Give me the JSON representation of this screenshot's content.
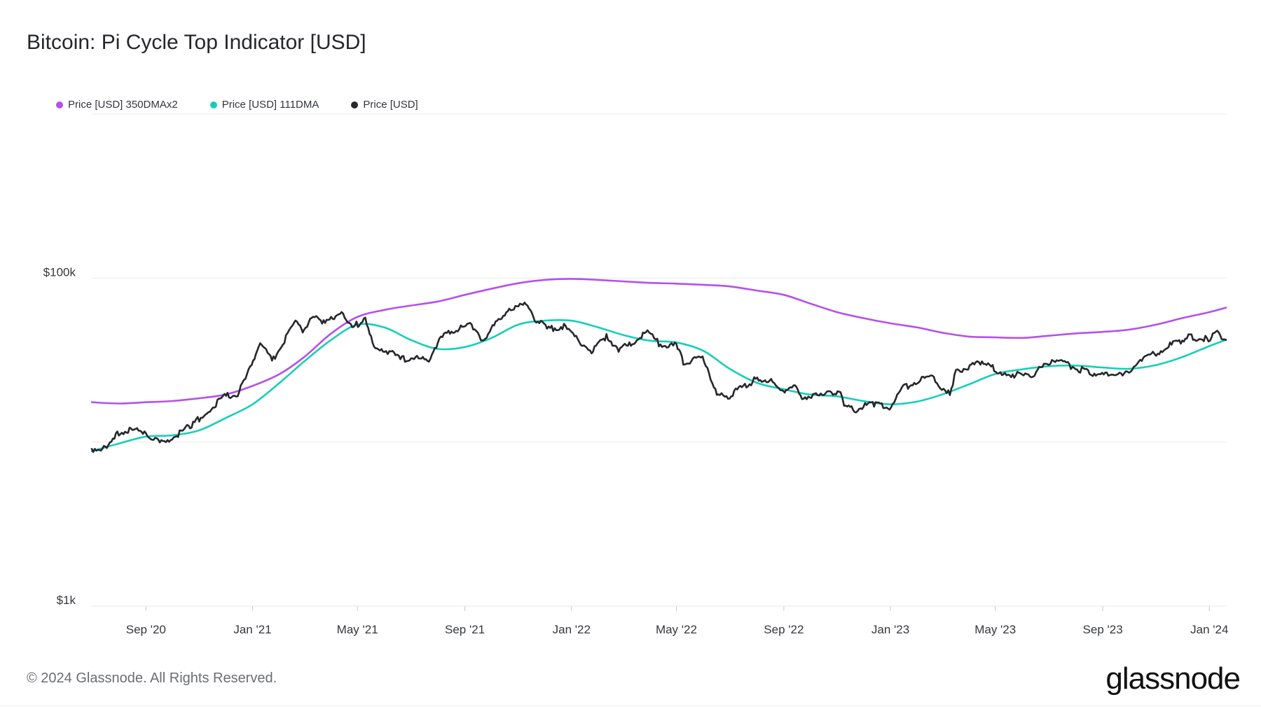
{
  "title": "Bitcoin: Pi Cycle Top Indicator [USD]",
  "footer": "© 2024 Glassnode. All Rights Reserved.",
  "logo": "glassnode",
  "colors": {
    "purple": "#b54fee",
    "teal": "#14cfb8",
    "black": "#26272b",
    "grid": "#e9e9ec",
    "axis_text": "#35373c"
  },
  "chart_data": {
    "type": "line",
    "title": "Bitcoin: Pi Cycle Top Indicator [USD]",
    "xlabel": "",
    "ylabel": "",
    "yscale": "log",
    "ylim": [
      1000,
      1000000
    ],
    "xlim": [
      "2020-07-01",
      "2024-01-20"
    ],
    "y_ticks": [
      {
        "value": 1000,
        "label": "$1k"
      },
      {
        "value": 100000,
        "label": "$100k"
      }
    ],
    "y_gridlines": [
      1000,
      10000,
      100000,
      1000000
    ],
    "x_ticks": [
      {
        "date": "2020-09-01",
        "label": "Sep '20"
      },
      {
        "date": "2021-01-01",
        "label": "Jan '21"
      },
      {
        "date": "2021-05-01",
        "label": "May '21"
      },
      {
        "date": "2021-09-01",
        "label": "Sep '21"
      },
      {
        "date": "2022-01-01",
        "label": "Jan '22"
      },
      {
        "date": "2022-05-01",
        "label": "May '22"
      },
      {
        "date": "2022-09-01",
        "label": "Sep '22"
      },
      {
        "date": "2023-01-01",
        "label": "Jan '23"
      },
      {
        "date": "2023-05-01",
        "label": "May '23"
      },
      {
        "date": "2023-09-01",
        "label": "Sep '23"
      },
      {
        "date": "2024-01-01",
        "label": "Jan '24"
      }
    ],
    "legend_position": "top-left",
    "series": [
      {
        "name": "Price [USD] 350DMAx2",
        "color": "#b54fee",
        "points": [
          [
            "2020-07-01",
            17500
          ],
          [
            "2020-08-01",
            17200
          ],
          [
            "2020-09-01",
            17500
          ],
          [
            "2020-10-01",
            17800
          ],
          [
            "2020-11-01",
            18500
          ],
          [
            "2020-12-01",
            19500
          ],
          [
            "2021-01-01",
            22000
          ],
          [
            "2021-02-01",
            26000
          ],
          [
            "2021-03-01",
            33000
          ],
          [
            "2021-04-01",
            46000
          ],
          [
            "2021-05-01",
            58000
          ],
          [
            "2021-06-01",
            64000
          ],
          [
            "2021-07-01",
            68000
          ],
          [
            "2021-08-01",
            72000
          ],
          [
            "2021-09-01",
            79000
          ],
          [
            "2021-10-01",
            86000
          ],
          [
            "2021-11-01",
            93000
          ],
          [
            "2021-12-01",
            97500
          ],
          [
            "2022-01-01",
            99000
          ],
          [
            "2022-02-01",
            97500
          ],
          [
            "2022-03-01",
            95500
          ],
          [
            "2022-04-01",
            93500
          ],
          [
            "2022-05-01",
            92500
          ],
          [
            "2022-06-01",
            91000
          ],
          [
            "2022-07-01",
            89000
          ],
          [
            "2022-08-01",
            84000
          ],
          [
            "2022-09-01",
            79000
          ],
          [
            "2022-10-01",
            70000
          ],
          [
            "2022-11-01",
            62000
          ],
          [
            "2022-12-01",
            57000
          ],
          [
            "2023-01-01",
            53000
          ],
          [
            "2023-02-01",
            50000
          ],
          [
            "2023-03-01",
            46500
          ],
          [
            "2023-04-01",
            44000
          ],
          [
            "2023-05-01",
            43500
          ],
          [
            "2023-06-01",
            43200
          ],
          [
            "2023-07-01",
            44500
          ],
          [
            "2023-08-01",
            46000
          ],
          [
            "2023-09-01",
            47000
          ],
          [
            "2023-10-01",
            48500
          ],
          [
            "2023-11-01",
            52000
          ],
          [
            "2023-12-01",
            57000
          ],
          [
            "2024-01-01",
            62000
          ],
          [
            "2024-01-20",
            66000
          ]
        ]
      },
      {
        "name": "Price [USD] 111DMA",
        "color": "#14cfb8",
        "points": [
          [
            "2020-07-01",
            8800
          ],
          [
            "2020-08-01",
            9800
          ],
          [
            "2020-09-01",
            10800
          ],
          [
            "2020-10-01",
            11000
          ],
          [
            "2020-11-01",
            11800
          ],
          [
            "2020-12-01",
            14000
          ],
          [
            "2021-01-01",
            17000
          ],
          [
            "2021-02-01",
            23000
          ],
          [
            "2021-03-01",
            31000
          ],
          [
            "2021-04-01",
            42000
          ],
          [
            "2021-05-01",
            52000
          ],
          [
            "2021-06-01",
            50000
          ],
          [
            "2021-07-01",
            42000
          ],
          [
            "2021-08-01",
            37000
          ],
          [
            "2021-09-01",
            38000
          ],
          [
            "2021-10-01",
            43000
          ],
          [
            "2021-11-01",
            52000
          ],
          [
            "2021-12-01",
            55000
          ],
          [
            "2022-01-01",
            55000
          ],
          [
            "2022-02-01",
            50000
          ],
          [
            "2022-03-01",
            45000
          ],
          [
            "2022-04-01",
            41500
          ],
          [
            "2022-05-01",
            40500
          ],
          [
            "2022-06-01",
            36000
          ],
          [
            "2022-07-01",
            28000
          ],
          [
            "2022-08-01",
            23000
          ],
          [
            "2022-09-01",
            21000
          ],
          [
            "2022-10-01",
            19500
          ],
          [
            "2022-11-01",
            19000
          ],
          [
            "2022-12-01",
            17800
          ],
          [
            "2023-01-01",
            17000
          ],
          [
            "2023-02-01",
            17700
          ],
          [
            "2023-03-01",
            19500
          ],
          [
            "2023-04-01",
            22500
          ],
          [
            "2023-05-01",
            26000
          ],
          [
            "2023-06-01",
            27800
          ],
          [
            "2023-07-01",
            29000
          ],
          [
            "2023-08-01",
            29300
          ],
          [
            "2023-09-01",
            28500
          ],
          [
            "2023-10-01",
            28000
          ],
          [
            "2023-11-01",
            29500
          ],
          [
            "2023-12-01",
            33000
          ],
          [
            "2024-01-01",
            38500
          ],
          [
            "2024-01-20",
            42000
          ]
        ]
      },
      {
        "name": "Price [USD]",
        "color": "#26272b",
        "points": [
          [
            "2020-07-01",
            9100
          ],
          [
            "2020-07-20",
            9200
          ],
          [
            "2020-08-01",
            11500
          ],
          [
            "2020-08-15",
            11800
          ],
          [
            "2020-09-01",
            11700
          ],
          [
            "2020-09-08",
            10200
          ],
          [
            "2020-10-01",
            10600
          ],
          [
            "2020-10-25",
            13000
          ],
          [
            "2020-11-15",
            16000
          ],
          [
            "2020-11-30",
            19000
          ],
          [
            "2020-12-15",
            19500
          ],
          [
            "2020-12-31",
            29000
          ],
          [
            "2021-01-08",
            40000
          ],
          [
            "2021-01-25",
            32000
          ],
          [
            "2021-02-10",
            45000
          ],
          [
            "2021-02-21",
            56000
          ],
          [
            "2021-03-01",
            47000
          ],
          [
            "2021-03-13",
            60000
          ],
          [
            "2021-03-25",
            52500
          ],
          [
            "2021-04-13",
            63500
          ],
          [
            "2021-04-25",
            49000
          ],
          [
            "2021-05-10",
            58000
          ],
          [
            "2021-05-20",
            37000
          ],
          [
            "2021-06-01",
            37000
          ],
          [
            "2021-06-21",
            32000
          ],
          [
            "2021-07-10",
            33500
          ],
          [
            "2021-07-20",
            30000
          ],
          [
            "2021-08-01",
            41000
          ],
          [
            "2021-08-15",
            47000
          ],
          [
            "2021-09-07",
            51000
          ],
          [
            "2021-09-21",
            42000
          ],
          [
            "2021-10-01",
            48000
          ],
          [
            "2021-10-20",
            65000
          ],
          [
            "2021-11-10",
            68000
          ],
          [
            "2021-11-20",
            57000
          ],
          [
            "2021-12-04",
            49000
          ],
          [
            "2021-12-27",
            51000
          ],
          [
            "2022-01-08",
            41500
          ],
          [
            "2022-01-24",
            36000
          ],
          [
            "2022-02-10",
            44000
          ],
          [
            "2022-02-24",
            37000
          ],
          [
            "2022-03-10",
            39000
          ],
          [
            "2022-03-29",
            47500
          ],
          [
            "2022-04-11",
            40000
          ],
          [
            "2022-05-01",
            38500
          ],
          [
            "2022-05-09",
            31000
          ],
          [
            "2022-05-31",
            31800
          ],
          [
            "2022-06-13",
            22500
          ],
          [
            "2022-06-18",
            19000
          ],
          [
            "2022-07-01",
            19200
          ],
          [
            "2022-07-29",
            23800
          ],
          [
            "2022-08-14",
            24300
          ],
          [
            "2022-08-28",
            20000
          ],
          [
            "2022-09-12",
            22400
          ],
          [
            "2022-09-20",
            19000
          ],
          [
            "2022-10-15",
            19100
          ],
          [
            "2022-11-05",
            21000
          ],
          [
            "2022-11-09",
            16500
          ],
          [
            "2022-11-21",
            15800
          ],
          [
            "2022-12-15",
            17300
          ],
          [
            "2022-12-31",
            16500
          ],
          [
            "2023-01-14",
            20900
          ],
          [
            "2023-01-30",
            23500
          ],
          [
            "2023-02-16",
            24700
          ],
          [
            "2023-03-10",
            20000
          ],
          [
            "2023-03-17",
            27000
          ],
          [
            "2023-04-14",
            30500
          ],
          [
            "2023-05-12",
            26300
          ],
          [
            "2023-06-15",
            25000
          ],
          [
            "2023-06-22",
            30000
          ],
          [
            "2023-07-14",
            31000
          ],
          [
            "2023-08-17",
            26500
          ],
          [
            "2023-09-11",
            25000
          ],
          [
            "2023-10-01",
            27500
          ],
          [
            "2023-10-23",
            33000
          ],
          [
            "2023-11-10",
            37000
          ],
          [
            "2023-12-08",
            44000
          ],
          [
            "2023-12-31",
            42300
          ],
          [
            "2024-01-10",
            46500
          ],
          [
            "2024-01-20",
            42000
          ]
        ]
      }
    ]
  }
}
